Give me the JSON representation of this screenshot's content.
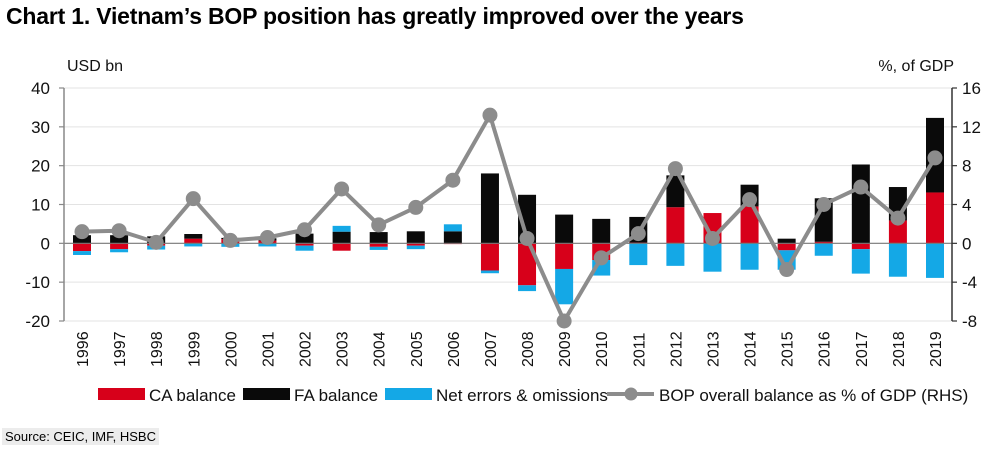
{
  "title": "Chart 1. Vietnam’s BOP position has greatly improved over the years",
  "source": "Source: CEIC, IMF, HSBC",
  "chart_data": {
    "type": "bar",
    "stacked": true,
    "title": "Chart 1. Vietnam’s BOP position has greatly improved over the years",
    "ylabel": "USD bn",
    "y2label": "%, of GDP",
    "ylim": [
      -20,
      40
    ],
    "y2lim": [
      -8,
      16
    ],
    "yticks": [
      40,
      30,
      20,
      10,
      0,
      -10,
      -20
    ],
    "y2ticks": [
      16,
      12,
      8,
      4,
      0,
      -4,
      -8
    ],
    "grid": true,
    "legend_position": "bottom",
    "categories": [
      "1996",
      "1997",
      "1998",
      "1999",
      "2000",
      "2001",
      "2002",
      "2003",
      "2004",
      "2005",
      "2006",
      "2007",
      "2008",
      "2009",
      "2010",
      "2011",
      "2012",
      "2013",
      "2014",
      "2015",
      "2016",
      "2017",
      "2018",
      "2019"
    ],
    "series": [
      {
        "name": "CA balance",
        "type": "bar",
        "axis": "left",
        "color": "#d7001a",
        "values": [
          -2.0,
          -1.5,
          -0.6,
          1.2,
          1.1,
          0.7,
          -0.6,
          -1.9,
          -0.9,
          -0.6,
          -0.2,
          -7.0,
          -10.8,
          -6.6,
          -4.3,
          0.2,
          9.3,
          7.8,
          9.5,
          -1.8,
          0.4,
          -1.5,
          5.9,
          13.1
        ]
      },
      {
        "name": "FA balance",
        "type": "bar",
        "axis": "left",
        "color": "#0a0a0a",
        "values": [
          2.1,
          2.1,
          1.8,
          1.2,
          0.3,
          0.6,
          2.5,
          3.0,
          2.9,
          3.1,
          3.1,
          18.0,
          12.5,
          7.4,
          6.3,
          6.6,
          8.2,
          0.0,
          5.6,
          1.2,
          11.2,
          20.3,
          8.6,
          19.2
        ]
      },
      {
        "name": "Net errors & omissions",
        "type": "bar",
        "axis": "left",
        "color": "#14a8e6",
        "values": [
          -1.0,
          -0.8,
          -1.0,
          -0.8,
          -0.9,
          -0.8,
          -1.3,
          1.5,
          -0.8,
          -0.9,
          1.8,
          -0.7,
          -1.5,
          -9.1,
          -4.0,
          -5.6,
          -5.8,
          -7.3,
          -6.8,
          -5.0,
          -3.2,
          -6.3,
          -8.6,
          -8.9
        ]
      },
      {
        "name": "BOP overall balance as % of GDP (RHS)",
        "type": "line",
        "axis": "right",
        "color": "#8c8c8c",
        "values": [
          1.2,
          1.3,
          0.1,
          4.6,
          0.3,
          0.6,
          1.4,
          5.6,
          1.9,
          3.7,
          6.5,
          13.2,
          0.5,
          -8.0,
          -1.5,
          1.0,
          7.7,
          0.5,
          4.5,
          -2.7,
          4.0,
          5.8,
          2.6,
          8.8
        ]
      }
    ],
    "legend": [
      "CA balance",
      "FA balance",
      "Net errors & omissions",
      "BOP overall balance as % of GDP (RHS)"
    ]
  }
}
